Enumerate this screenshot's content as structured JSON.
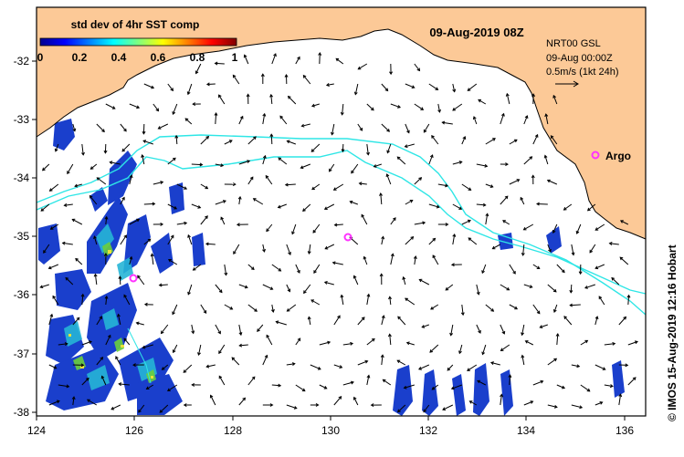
{
  "map": {
    "title": "09-Aug-2019 08Z",
    "colorbar": {
      "title": "std dev of 4hr SST comp",
      "ticks": [
        "0",
        "0.2",
        "0.4",
        "0.6",
        "0.8",
        "1"
      ]
    },
    "info": {
      "line1": "NRT00 GSL",
      "line2": "09-Aug 00:00Z",
      "line3": "0.5m/s (1kt 24h)"
    },
    "argo_label": "Argo",
    "credit": "© IMOS 15-Aug-2019 12:16 Hobart",
    "lon_ticks": [
      "124",
      "126",
      "128",
      "130",
      "132",
      "134",
      "136"
    ],
    "lat_ticks": [
      "-32",
      "-33",
      "-34",
      "-35",
      "-36",
      "-37",
      "-38"
    ],
    "colors": {
      "land": "#fcc997",
      "ocean": "#ffffff",
      "contour": "#2ee6e6",
      "argo": "#ff33ff",
      "arrow": "#000000"
    }
  }
}
